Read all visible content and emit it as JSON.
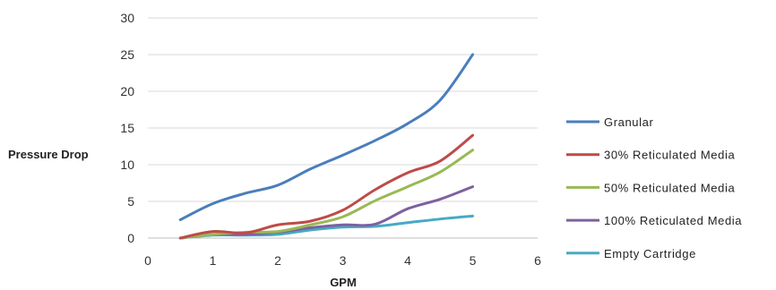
{
  "chart_data": {
    "type": "line",
    "xlabel": "GPM",
    "ylabel": "Pressure Drop",
    "xlim": [
      0,
      6
    ],
    "ylim": [
      0,
      30
    ],
    "x_ticks": [
      "0",
      "1",
      "2",
      "3",
      "4",
      "5",
      "6"
    ],
    "y_ticks": [
      "0",
      "5",
      "10",
      "15",
      "20",
      "25",
      "30"
    ],
    "grid": "horizontal",
    "legend_position": "right",
    "series": [
      {
        "name": "Granular",
        "color": "#4a7ebb",
        "x": [
          0.5,
          1.0,
          1.5,
          2.0,
          2.5,
          3.0,
          3.5,
          4.0,
          4.5,
          5.0
        ],
        "y": [
          2.5,
          4.7,
          6.1,
          7.2,
          9.4,
          11.3,
          13.3,
          15.6,
          18.8,
          25
        ]
      },
      {
        "name": "30% Reticulated Media",
        "color": "#be4b48",
        "x": [
          0.5,
          1.0,
          1.5,
          2.0,
          2.5,
          3.0,
          3.5,
          4.0,
          4.5,
          5.0
        ],
        "y": [
          0.0,
          0.9,
          0.7,
          1.8,
          2.3,
          3.8,
          6.6,
          8.9,
          10.5,
          14
        ]
      },
      {
        "name": "50% Reticulated Media",
        "color": "#98b954",
        "x": [
          0.5,
          1.0,
          1.5,
          2.0,
          2.5,
          3.0,
          3.5,
          4.0,
          4.5,
          5.0
        ],
        "y": [
          0.0,
          0.5,
          0.8,
          0.9,
          1.8,
          2.9,
          5.1,
          7.0,
          9.0,
          12
        ]
      },
      {
        "name": "100% Reticulated Media",
        "color": "#7d60a0",
        "x": [
          0.5,
          1.0,
          1.5,
          2.0,
          2.5,
          3.0,
          3.5,
          4.0,
          4.5,
          5.0
        ],
        "y": [
          0.0,
          0.5,
          0.5,
          0.8,
          1.4,
          1.8,
          1.9,
          4.0,
          5.3,
          7
        ]
      },
      {
        "name": "Empty Cartridge",
        "color": "#46aac5",
        "x": [
          0.5,
          1.0,
          1.5,
          2.0,
          2.5,
          3.0,
          3.5,
          4.0,
          4.5,
          5.0
        ],
        "y": [
          0.0,
          0.4,
          0.4,
          0.5,
          1.1,
          1.5,
          1.6,
          2.1,
          2.6,
          3
        ]
      }
    ]
  }
}
